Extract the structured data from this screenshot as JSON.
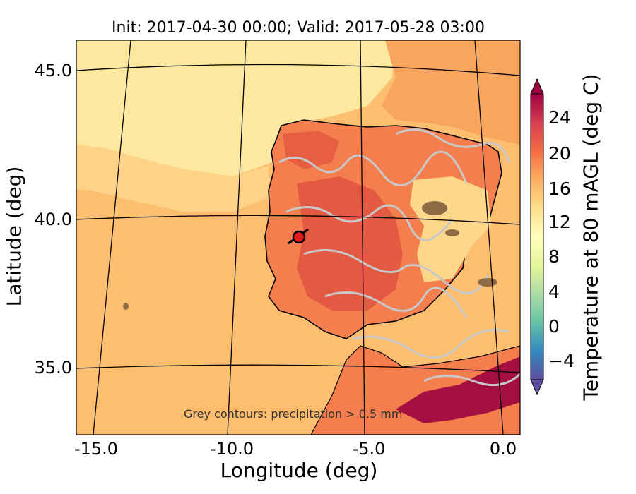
{
  "title": "Init: 2017-04-30 00:00; Valid: 2017-05-28 03:00",
  "axes": {
    "xlabel": "Longitude (deg)",
    "ylabel": "Latitude (deg)",
    "xticks": [
      "-15.0",
      "-10.0",
      "-5.0",
      "0.0"
    ],
    "yticks": [
      "45.0",
      "40.0",
      "35.0"
    ]
  },
  "colorbar": {
    "label": "Temperature at 80 mAGL (deg C)",
    "ticks": [
      "24",
      "20",
      "16",
      "12",
      "8",
      "4",
      "0",
      "−4"
    ],
    "colors": [
      "#5e4fa2",
      "#3288bd",
      "#66c2a5",
      "#abdda4",
      "#e6f598",
      "#ffffbf",
      "#fee08b",
      "#fdae61",
      "#f46d43",
      "#d53e4f",
      "#9e0142"
    ]
  },
  "annotation": "Grey contours: precipitation > 0.5 mm",
  "marker": {
    "name": "site-marker",
    "color": "#e31a1c"
  },
  "map_colors": {
    "sea": "#fdbe70",
    "sea_cool": "#fee8a0",
    "land_warm": "#f47e4e",
    "land_hot": "#e0523f",
    "land_mild": "#fdd88a",
    "precip": "#c8c8c8",
    "extreme": "#a50f3f"
  }
}
